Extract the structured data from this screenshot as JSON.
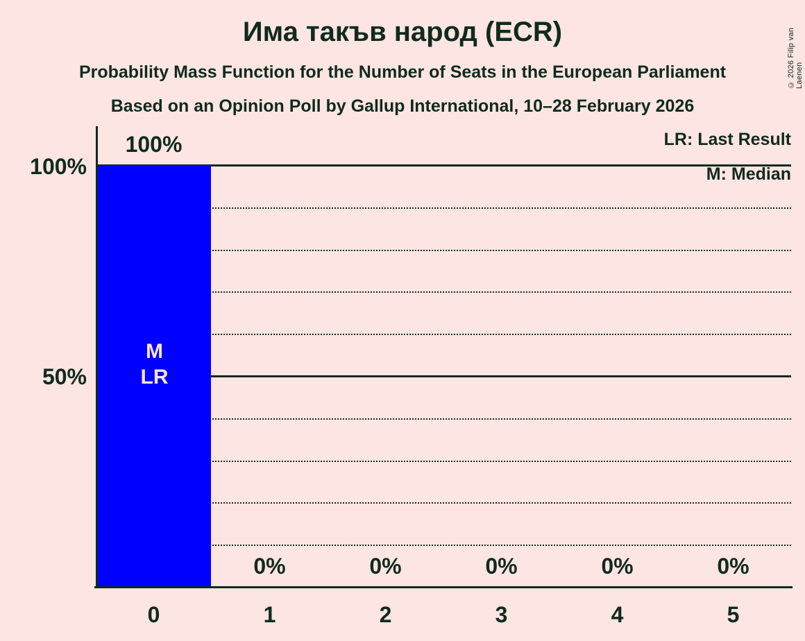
{
  "title": "Има такъв народ (ECR)",
  "subtitle1": "Probability Mass Function for the Number of Seats in the European Parliament",
  "subtitle2": "Based on an Opinion Poll by Gallup International, 10–28 February 2026",
  "copyright": "© 2026 Filip van Laenen",
  "legend": {
    "lr": "LR: Last Result",
    "m": "M: Median"
  },
  "annotations": {
    "median_label": "M",
    "last_result_label": "LR"
  },
  "colors": {
    "background": "#FCE5E2",
    "bar": "#0000FF",
    "text": "#112A1E",
    "bar_text": "#FCE5E2"
  },
  "chart_data": {
    "type": "bar",
    "title": "Има такъв народ (ECR)",
    "categories": [
      "0",
      "1",
      "2",
      "3",
      "4",
      "5"
    ],
    "values": [
      100,
      0,
      0,
      0,
      0,
      0
    ],
    "bar_labels": [
      "100%",
      "0%",
      "0%",
      "0%",
      "0%",
      "0%"
    ],
    "ylim": [
      0,
      100
    ],
    "yticks": [
      {
        "value": 100,
        "label": "100%"
      },
      {
        "value": 50,
        "label": "50%"
      }
    ],
    "gridlines_solid": [
      50,
      100
    ],
    "gridlines_dotted": [
      10,
      20,
      30,
      40,
      60,
      70,
      80,
      90
    ],
    "legend_position": "top-right",
    "median_category": "0",
    "last_result_category": "0"
  }
}
